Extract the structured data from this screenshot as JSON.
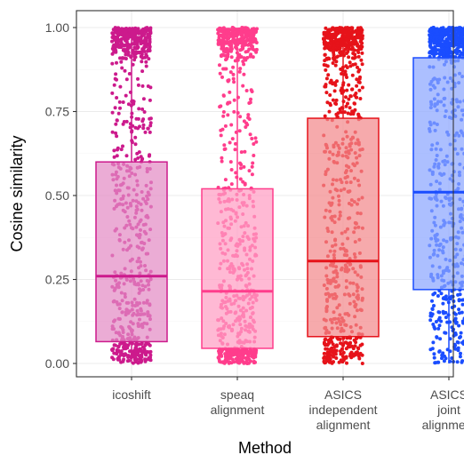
{
  "chart_data": {
    "type": "box",
    "title": "",
    "xlabel": "Method",
    "ylabel": "Cosine similarity",
    "ylim": [
      0,
      1
    ],
    "yticks": [
      0.0,
      0.25,
      0.5,
      0.75,
      1.0
    ],
    "ytick_labels": [
      "0.00",
      "0.25",
      "0.50",
      "0.75",
      "1.00"
    ],
    "grid": true,
    "legend": "none",
    "overlay": "jittered points",
    "categories": [
      {
        "key": "icoshift",
        "label_lines": [
          "icoshift"
        ]
      },
      {
        "key": "speaq",
        "label_lines": [
          "speaq",
          "alignment"
        ]
      },
      {
        "key": "asics_ind",
        "label_lines": [
          "ASICS",
          "independent",
          "alignment"
        ]
      },
      {
        "key": "asics_joint",
        "label_lines": [
          "ASICS",
          "joint",
          "alignment"
        ]
      }
    ],
    "series": [
      {
        "category": "icoshift",
        "q1": 0.065,
        "median": 0.26,
        "q3": 0.6,
        "whisker_low": 0.0,
        "whisker_high": 1.0,
        "color": "#cc1a8c",
        "fill": "#e38cc5"
      },
      {
        "category": "speaq",
        "q1": 0.045,
        "median": 0.215,
        "q3": 0.52,
        "whisker_low": 0.0,
        "whisker_high": 1.0,
        "color": "#ff3d8c",
        "fill": "#ff9ec4"
      },
      {
        "category": "asics_ind",
        "q1": 0.08,
        "median": 0.305,
        "q3": 0.73,
        "whisker_low": 0.0,
        "whisker_high": 1.0,
        "color": "#e6131a",
        "fill": "#f2898c"
      },
      {
        "category": "asics_joint",
        "q1": 0.22,
        "median": 0.51,
        "q3": 0.91,
        "whisker_low": 0.0,
        "whisker_high": 1.0,
        "color": "#1a4dff",
        "fill": "#8ca6ff"
      }
    ]
  }
}
